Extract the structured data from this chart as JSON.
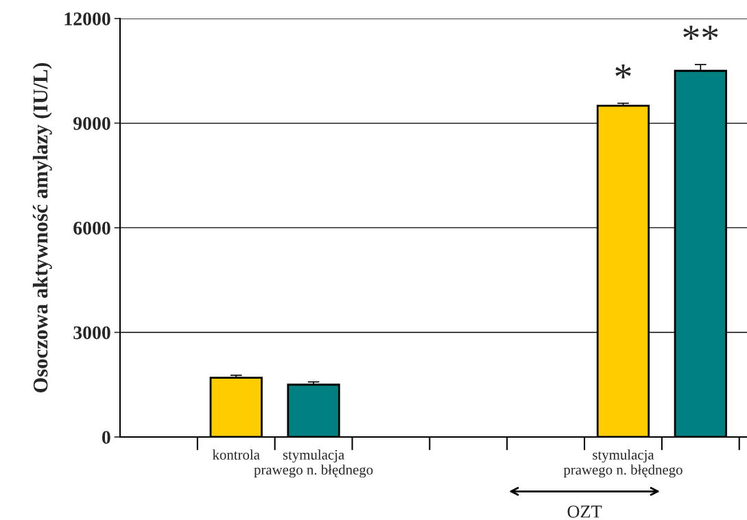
{
  "chart_data": {
    "type": "bar",
    "ylabel": "Osoczowa aktywność amylazy (IU/L)",
    "categories": [
      null,
      "kontrola",
      "stymulacja\nprawego n. błędnego",
      null,
      null,
      null,
      "stymulacja\nprawego n. błędnego",
      null
    ],
    "values": [
      null,
      1700,
      1500,
      null,
      null,
      null,
      9500,
      10500
    ],
    "colors": [
      null,
      "#ffcc00",
      "#008080",
      null,
      null,
      null,
      "#ffcc00",
      "#008080"
    ],
    "errors": [
      null,
      70,
      80,
      null,
      null,
      null,
      70,
      180
    ],
    "ylim": [
      0,
      12000
    ],
    "yticks": [
      0,
      3000,
      6000,
      9000,
      12000
    ],
    "grid": "y",
    "annotations": [
      "*",
      "**",
      "OZT"
    ]
  }
}
